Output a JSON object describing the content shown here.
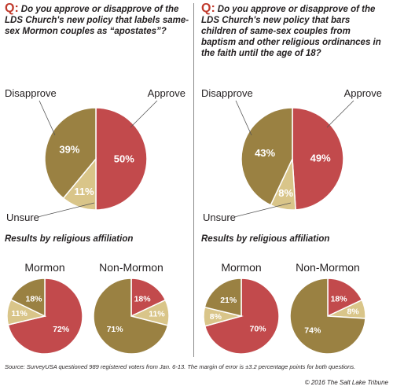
{
  "colors": {
    "approve": "#c24a4c",
    "disapprove": "#9a8142",
    "unsure": "#d9c589",
    "question_mark": "#c0392b"
  },
  "left_panel": {
    "q_label": "Q:",
    "question": "Do you approve or disapprove of the LDS Church's new policy that labels same-sex Mormon couples as “apostates”?"
  },
  "right_panel": {
    "q_label": "Q:",
    "question": "Do you approve or disapprove of the LDS Church's new policy that bars children of same-sex couples from baptism and other religious ordinances in the faith until the age of 18?"
  },
  "results_title": "Results by religious affiliation",
  "footer": {
    "source": "Source: SurveyUSA questioned 989 registered voters from Jan. 6-13. The margin of error is ±3.2 percentage points for both questions.",
    "credit": "© 2016 The Salt Lake Tribune"
  },
  "chart_data": [
    {
      "id": "q1-overall",
      "type": "pie",
      "title": "",
      "slices": [
        {
          "label": "Approve",
          "value": 50,
          "value_label": "50%"
        },
        {
          "label": "Unsure",
          "value": 11,
          "value_label": "11%"
        },
        {
          "label": "Disapprove",
          "value": 39,
          "value_label": "39%"
        }
      ]
    },
    {
      "id": "q2-overall",
      "type": "pie",
      "title": "",
      "slices": [
        {
          "label": "Approve",
          "value": 49,
          "value_label": "49%"
        },
        {
          "label": "Unsure",
          "value": 8,
          "value_label": "8%"
        },
        {
          "label": "Disapprove",
          "value": 43,
          "value_label": "43%"
        }
      ]
    },
    {
      "id": "q1-mormon",
      "type": "pie",
      "title": "Mormon",
      "slices": [
        {
          "label": "Approve",
          "value": 72,
          "value_label": "72%"
        },
        {
          "label": "Unsure",
          "value": 11,
          "value_label": "11%"
        },
        {
          "label": "Disapprove",
          "value": 18,
          "value_label": "18%"
        }
      ]
    },
    {
      "id": "q1-non-mormon",
      "type": "pie",
      "title": "Non-Mormon",
      "slices": [
        {
          "label": "Approve",
          "value": 18,
          "value_label": "18%"
        },
        {
          "label": "Unsure",
          "value": 11,
          "value_label": "11%"
        },
        {
          "label": "Disapprove",
          "value": 71,
          "value_label": "71%"
        }
      ]
    },
    {
      "id": "q2-mormon",
      "type": "pie",
      "title": "Mormon",
      "slices": [
        {
          "label": "Approve",
          "value": 70,
          "value_label": "70%"
        },
        {
          "label": "Unsure",
          "value": 8,
          "value_label": "8%"
        },
        {
          "label": "Disapprove",
          "value": 21,
          "value_label": "21%"
        }
      ]
    },
    {
      "id": "q2-non-mormon",
      "type": "pie",
      "title": "Non-Mormon",
      "slices": [
        {
          "label": "Approve",
          "value": 18,
          "value_label": "18%"
        },
        {
          "label": "Unsure",
          "value": 8,
          "value_label": "8%"
        },
        {
          "label": "Disapprove",
          "value": 74,
          "value_label": "74%"
        }
      ]
    }
  ]
}
